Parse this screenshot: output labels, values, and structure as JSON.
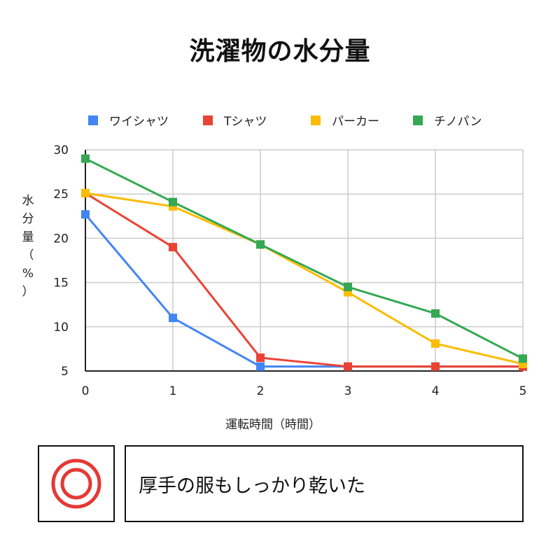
{
  "title": "洗濯物の水分量",
  "chart_data": {
    "type": "line",
    "title": "洗濯物の水分量",
    "xlabel": "運転時間（時間）",
    "ylabel": "水分量（%）",
    "x": [
      0,
      1,
      2,
      3,
      4,
      5
    ],
    "xlim": [
      0,
      5
    ],
    "ylim": [
      5,
      30
    ],
    "yticks": [
      5,
      10,
      15,
      20,
      25,
      30
    ],
    "grid": true,
    "legend_position": "top",
    "series": [
      {
        "name": "ワイシャツ",
        "color": "#4285f4",
        "values": [
          22.7,
          11.0,
          5.5,
          5.5,
          5.5,
          5.5
        ]
      },
      {
        "name": "Tシャツ",
        "color": "#ea4335",
        "values": [
          25.1,
          19.0,
          6.5,
          5.5,
          5.5,
          5.5
        ]
      },
      {
        "name": "パーカー",
        "color": "#fbbc04",
        "values": [
          25.1,
          23.6,
          19.3,
          13.9,
          8.1,
          5.8
        ]
      },
      {
        "name": "チノパン",
        "color": "#34a853",
        "values": [
          29.0,
          24.1,
          19.3,
          14.5,
          11.5,
          6.4
        ]
      }
    ]
  },
  "result": {
    "mark_icon": "double-circle-icon",
    "mark_color": "#e53935",
    "text": "厚手の服もしっかり乾いた"
  }
}
